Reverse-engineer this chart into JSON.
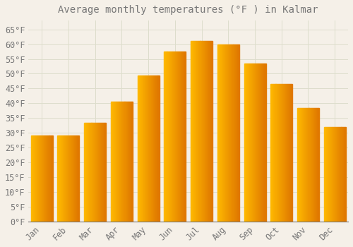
{
  "title": "Average monthly temperatures (°F ) in Kalmar",
  "months": [
    "Jan",
    "Feb",
    "Mar",
    "Apr",
    "May",
    "Jun",
    "Jul",
    "Aug",
    "Sep",
    "Oct",
    "Nov",
    "Dec"
  ],
  "values": [
    29,
    29,
    33.5,
    40.5,
    49.5,
    57.5,
    61,
    60,
    53.5,
    46.5,
    38.5,
    32
  ],
  "bar_color_left": "#FFB900",
  "bar_color_right": "#E07800",
  "background_color": "#F5F0E8",
  "plot_bg_color": "#F5F0E8",
  "grid_color": "#DDDDCC",
  "text_color": "#777777",
  "ylim": [
    0,
    68
  ],
  "yticks": [
    0,
    5,
    10,
    15,
    20,
    25,
    30,
    35,
    40,
    45,
    50,
    55,
    60,
    65
  ],
  "title_fontsize": 10,
  "tick_fontsize": 8.5,
  "bar_width": 0.82
}
